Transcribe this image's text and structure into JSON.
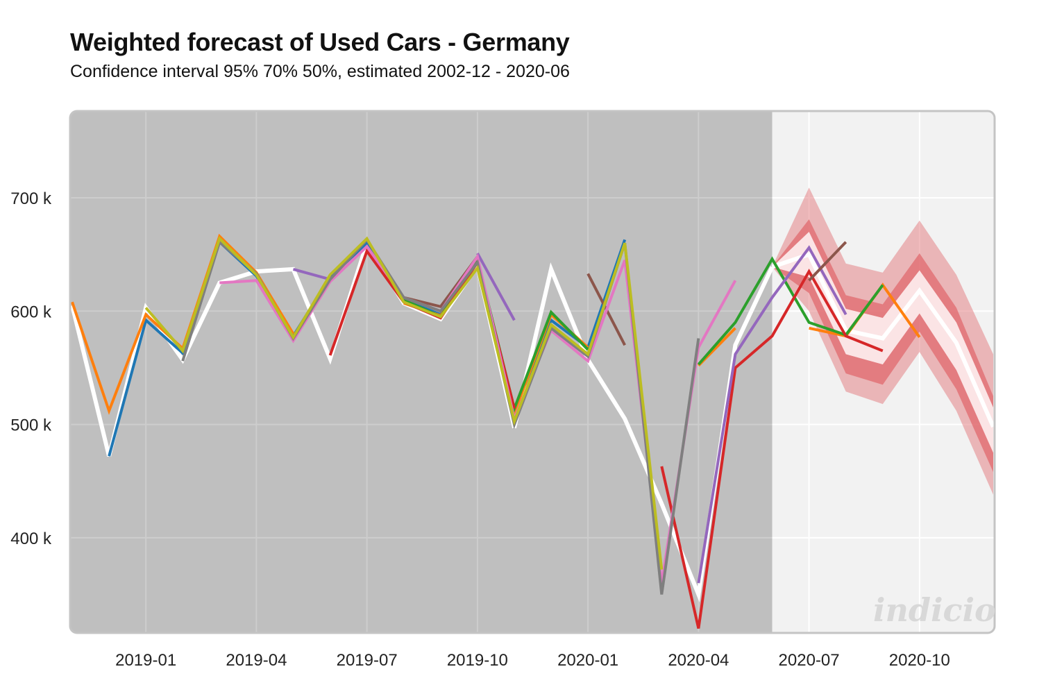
{
  "chart_data": {
    "type": "line",
    "title": "Weighted forecast of Used Cars - Germany",
    "subtitle": "Confidence interval 95% 70% 50%, estimated 2002-12 - 2020-06",
    "xlabel": "",
    "ylabel": "",
    "ylim": [
      325,
      776
    ],
    "y_ticks": [
      {
        "value": 400,
        "label": "400 k"
      },
      {
        "value": 500,
        "label": "500 k"
      },
      {
        "value": 600,
        "label": "600 k"
      },
      {
        "value": 700,
        "label": "700 k"
      }
    ],
    "x_months": [
      "2018-11",
      "2018-12",
      "2019-01",
      "2019-02",
      "2019-03",
      "2019-04",
      "2019-05",
      "2019-06",
      "2019-07",
      "2019-08",
      "2019-09",
      "2019-10",
      "2019-11",
      "2019-12",
      "2020-01",
      "2020-02",
      "2020-03",
      "2020-04",
      "2020-05",
      "2020-06",
      "2020-07",
      "2020-08",
      "2020-09",
      "2020-10",
      "2020-11",
      "2020-12"
    ],
    "x_ticks": [
      {
        "month": "2019-01",
        "label": "2019-01"
      },
      {
        "month": "2019-04",
        "label": "2019-04"
      },
      {
        "month": "2019-07",
        "label": "2019-07"
      },
      {
        "month": "2019-10",
        "label": "2019-10"
      },
      {
        "month": "2020-01",
        "label": "2020-01"
      },
      {
        "month": "2020-04",
        "label": "2020-04"
      },
      {
        "month": "2020-07",
        "label": "2020-07"
      },
      {
        "month": "2020-10",
        "label": "2020-10"
      }
    ],
    "history_end_month": "2020-06",
    "grid": true,
    "unit": "thousands",
    "actual": {
      "name": "Actual",
      "color": "#ffffff",
      "values": [
        605,
        472,
        603,
        557,
        625,
        635,
        637,
        558,
        660,
        607,
        593,
        640,
        497,
        637,
        557,
        505,
        430,
        350,
        570,
        639
      ]
    },
    "forecast_weighted": {
      "name": "Weighted forecast",
      "color": "#ffffff",
      "start_month": "2020-06",
      "values": [
        639,
        650,
        583,
        576,
        618,
        572,
        498
      ]
    },
    "confidence_bands": [
      {
        "level": "95%",
        "color": "#e06a6e",
        "opacity": 0.45,
        "start_month": "2020-06",
        "lower": [
          639,
          600,
          529,
          518,
          564,
          512,
          438
        ],
        "upper": [
          639,
          709,
          642,
          634,
          680,
          632,
          562
        ]
      },
      {
        "level": "70%",
        "color": "#e06a6e",
        "opacity": 0.75,
        "start_month": "2020-06",
        "lower": [
          639,
          616,
          545,
          535,
          582,
          531,
          458
        ],
        "upper": [
          639,
          681,
          614,
          606,
          651,
          603,
          525
        ]
      },
      {
        "level": "50%",
        "color": "#fbe4e5",
        "opacity": 1.0,
        "start_month": "2020-06",
        "lower": [
          639,
          630,
          562,
          553,
          598,
          548,
          475
        ],
        "upper": [
          639,
          670,
          602,
          594,
          636,
          590,
          515
        ]
      }
    ],
    "series": [
      {
        "name": "blue",
        "color": "#1f77b4",
        "start_month": "2018-12",
        "values": [
          472,
          592,
          563,
          661,
          631,
          578,
          630,
          660,
          610,
          597,
          643,
          512,
          592,
          568,
          663
        ]
      },
      {
        "name": "orange",
        "color": "#ff7f0e",
        "start_month": "2018-11",
        "values": [
          608,
          512,
          597,
          567,
          666,
          634,
          580,
          null,
          null,
          607,
          596,
          645,
          510,
          597,
          568,
          null,
          null,
          552,
          585,
          null,
          585,
          578,
          623,
          577
        ]
      },
      {
        "name": "green",
        "color": "#2ca02c",
        "start_month": "2019-08",
        "values": [
          610,
          595,
          645,
          514,
          599,
          566,
          null,
          null,
          553,
          590,
          646,
          590,
          579,
          623
        ]
      },
      {
        "name": "red",
        "color": "#d62728",
        "start_month": "2019-06",
        "values": [
          561,
          653,
          608,
          594,
          643,
          514,
          null,
          null,
          null,
          463,
          320,
          550,
          578,
          635,
          578,
          565
        ]
      },
      {
        "name": "purple",
        "color": "#9467bd",
        "start_month": "2019-05",
        "values": [
          637,
          628,
          null,
          null,
          null,
          651,
          592,
          null,
          null,
          null,
          null,
          360,
          562,
          612,
          656,
          597
        ]
      },
      {
        "name": "brown",
        "color": "#8c564b",
        "start_month": "2019-08",
        "values": [
          612,
          604,
          648,
          null,
          null,
          633,
          570,
          null,
          null,
          null,
          null,
          627,
          661
        ]
      },
      {
        "name": "pink",
        "color": "#e377c2",
        "start_month": "2019-03",
        "values": [
          625,
          627,
          574,
          626,
          657,
          612,
          600,
          648,
          505,
          583,
          556,
          645,
          360,
          568,
          627
        ]
      },
      {
        "name": "gray",
        "color": "#7f7f7f",
        "start_month": "2019-02",
        "values": [
          556,
          661,
          633,
          576,
          628,
          663,
          612,
          600,
          643,
          500,
          585,
          560,
          660,
          350,
          576
        ]
      },
      {
        "name": "olive",
        "color": "#bcbd22",
        "start_month": "2019-01",
        "values": [
          603,
          565,
          664,
          632,
          577,
          632,
          664,
          608,
          595,
          638,
          503,
          588,
          562,
          660,
          372
        ]
      }
    ],
    "watermark": "indicio"
  }
}
